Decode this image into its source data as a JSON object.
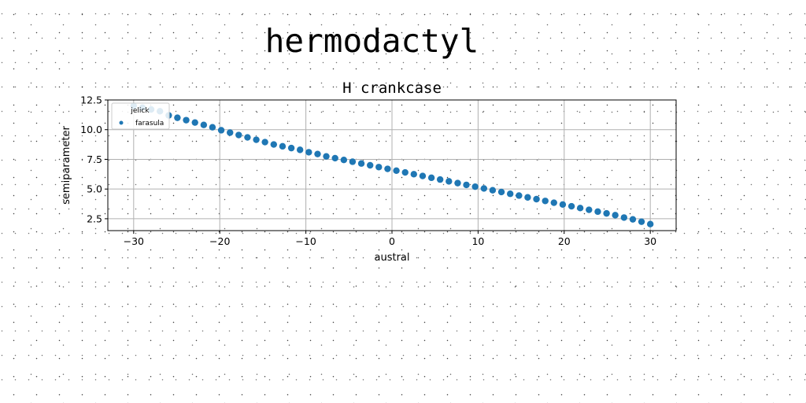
{
  "figure": {
    "suptitle": "hermodactyl"
  },
  "chart_data": {
    "type": "scatter",
    "title": "H crankcase",
    "xlabel": "austral",
    "ylabel": "semiparameter",
    "xlim": [
      -33,
      33
    ],
    "ylim": [
      1.5,
      12.5
    ],
    "xticks": [
      -30,
      -20,
      -10,
      0,
      10,
      20,
      30
    ],
    "xtick_labels": [
      "−30",
      "−20",
      "−10",
      "0",
      "10",
      "20",
      "30"
    ],
    "yticks": [
      2.5,
      5.0,
      7.5,
      10.0,
      12.5
    ],
    "ytick_labels": [
      "2.5",
      "5.0",
      "7.5",
      "10.0",
      "12.5"
    ],
    "grid": true,
    "legend": {
      "title": "jelick",
      "placement": "upper-left"
    },
    "series": [
      {
        "name": "farasula",
        "color": "#1f77b4",
        "x": [
          -30.0,
          -28.98,
          -27.97,
          -26.95,
          -25.93,
          -24.92,
          -23.9,
          -22.88,
          -21.86,
          -20.85,
          -19.83,
          -18.81,
          -17.8,
          -16.78,
          -15.76,
          -14.75,
          -13.73,
          -12.71,
          -11.69,
          -10.68,
          -9.66,
          -8.64,
          -7.63,
          -6.61,
          -5.59,
          -4.58,
          -3.56,
          -2.54,
          -1.53,
          -0.51,
          0.51,
          1.53,
          2.54,
          3.56,
          4.58,
          5.59,
          6.61,
          7.63,
          8.64,
          9.66,
          10.68,
          11.69,
          12.71,
          13.73,
          14.75,
          15.76,
          16.78,
          17.8,
          18.81,
          19.83,
          20.85,
          21.86,
          22.88,
          23.9,
          24.92,
          25.93,
          26.95,
          27.97,
          28.98,
          30.0
        ],
        "y": [
          12.0,
          11.85,
          11.7,
          11.55,
          11.2,
          11.0,
          10.8,
          10.6,
          10.4,
          10.2,
          9.95,
          9.75,
          9.55,
          9.35,
          9.15,
          8.95,
          8.75,
          8.6,
          8.45,
          8.3,
          8.1,
          7.95,
          7.75,
          7.6,
          7.45,
          7.3,
          7.15,
          7.0,
          6.85,
          6.7,
          6.55,
          6.4,
          6.25,
          6.1,
          5.95,
          5.8,
          5.65,
          5.5,
          5.35,
          5.2,
          5.05,
          4.9,
          4.75,
          4.6,
          4.45,
          4.3,
          4.15,
          4.0,
          3.85,
          3.7,
          3.55,
          3.4,
          3.25,
          3.1,
          2.95,
          2.8,
          2.6,
          2.45,
          2.25,
          2.05
        ]
      }
    ]
  }
}
